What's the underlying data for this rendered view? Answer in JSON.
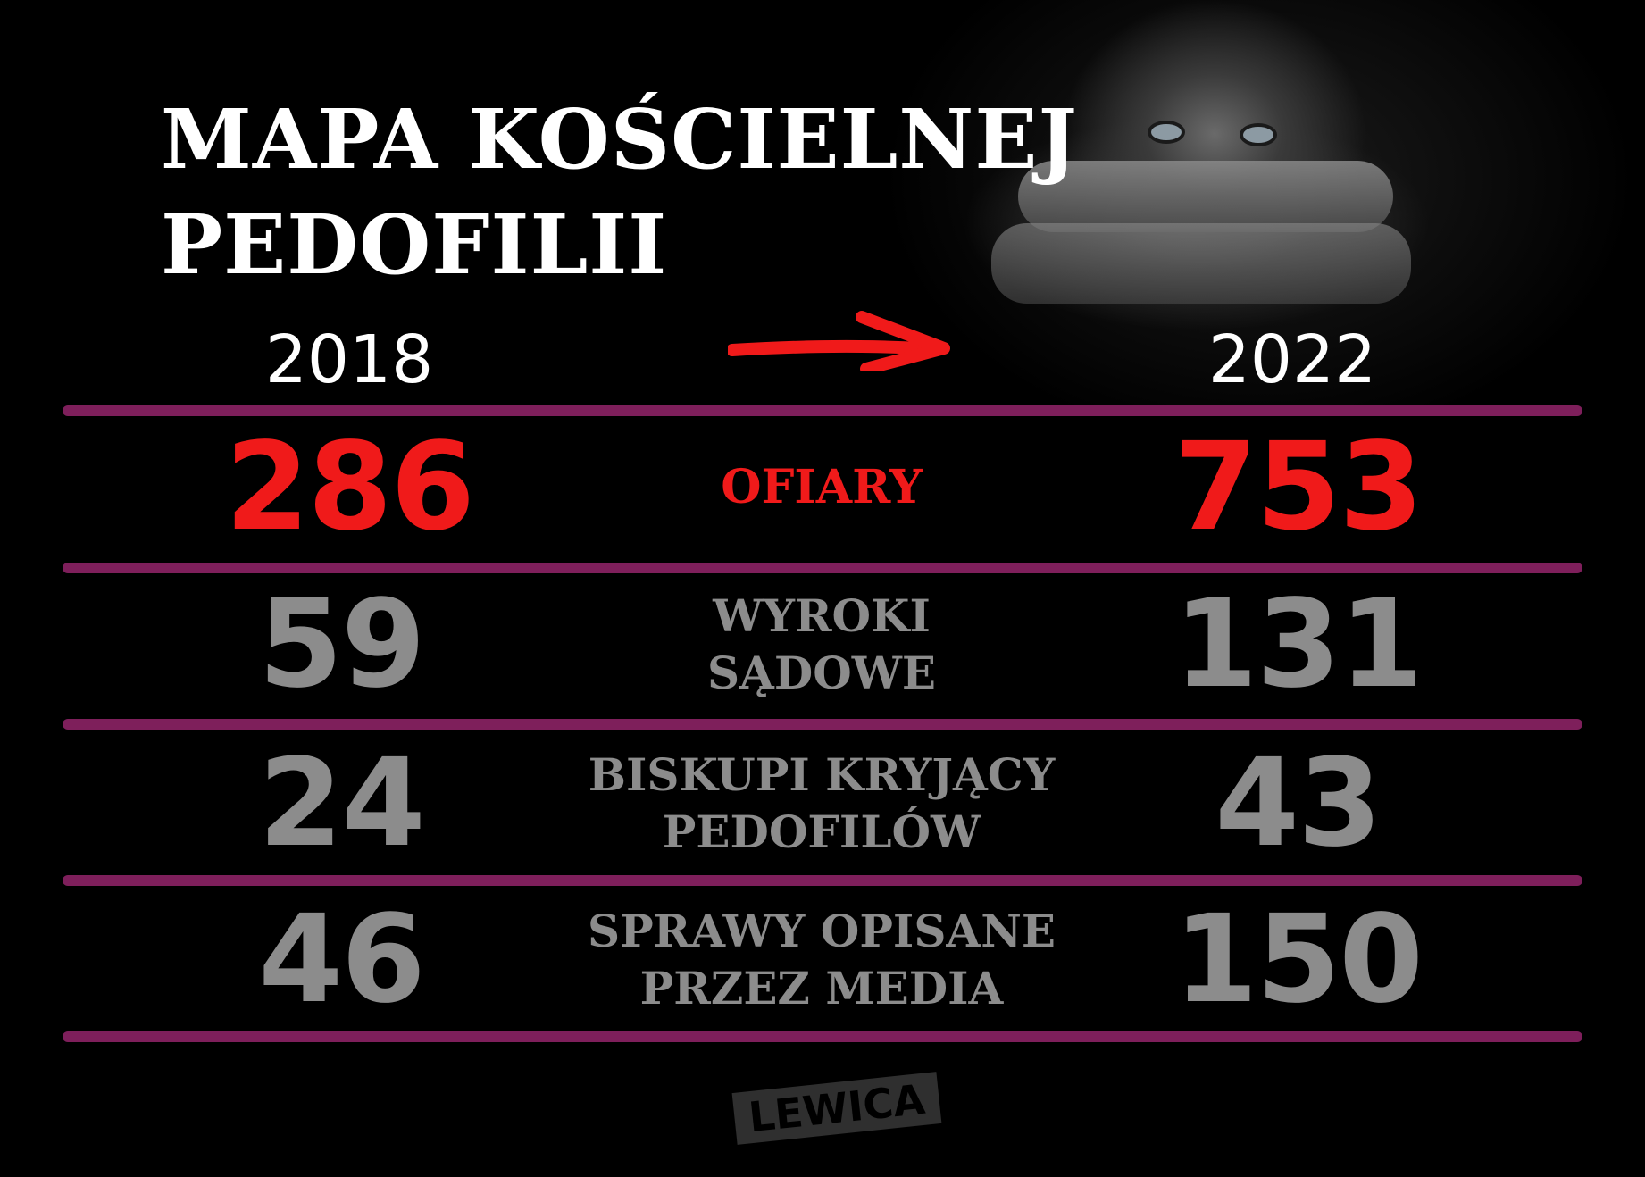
{
  "title": {
    "line1": "MAPA KOŚCIELNEJ",
    "line2": "PEDOFILII"
  },
  "years": {
    "from": "2018",
    "to": "2022"
  },
  "colors": {
    "highlight": "#f01a1a",
    "muted": "#8c8c8c",
    "divider": "#7e1f5b",
    "background": "#000000"
  },
  "rows": [
    {
      "label": [
        "OFIARY"
      ],
      "v2018": "286",
      "v2022": "753",
      "highlight": true
    },
    {
      "label": [
        "WYROKI",
        "SĄDOWE"
      ],
      "v2018": "59",
      "v2022": "131",
      "highlight": false
    },
    {
      "label": [
        "BISKUPI KRYJĄCY",
        "PEDOFILÓW"
      ],
      "v2018": "24",
      "v2022": "43",
      "highlight": false
    },
    {
      "label": [
        "SPRAWY OPISANE",
        "PRZEZ MEDIA"
      ],
      "v2018": "46",
      "v2022": "150",
      "highlight": false
    }
  ],
  "logo": "LEWICA"
}
